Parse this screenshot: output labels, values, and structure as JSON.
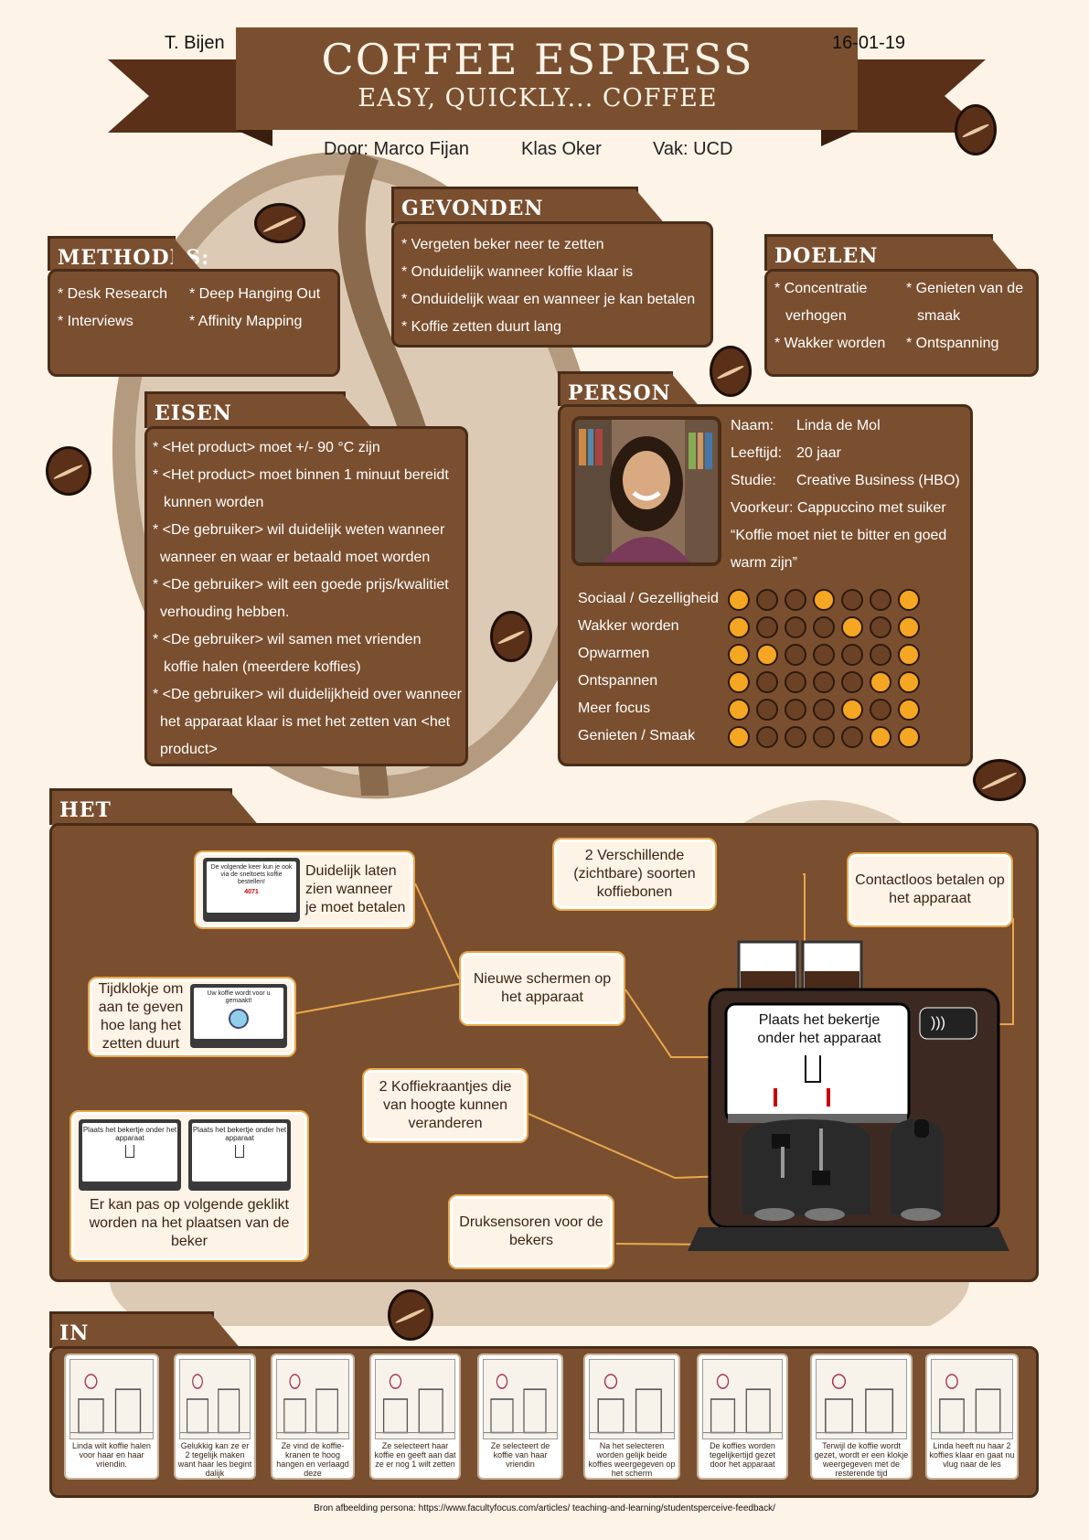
{
  "header": {
    "author": "T. Bijen",
    "date": "16-01-19",
    "title": "COFFEE ESPRESS",
    "subtitle": "EASY, QUICKLY... COFFEE",
    "by": "Door: Marco Fijan",
    "class": "Klas Oker",
    "subject": "Vak: UCD"
  },
  "methodes": {
    "title": "METHODES:",
    "col1": [
      "* Desk Research",
      "* Interviews"
    ],
    "col2": [
      "* Deep Hanging Out",
      "* Affinity Mapping"
    ]
  },
  "problemen": {
    "title": "GEVONDEN PROBLEMEN",
    "items": [
      "* Vergeten beker neer te zetten",
      "* Onduidelijk wanneer koffie klaar is",
      "* Onduidelijk waar en wanneer je kan betalen",
      "* Koffie zetten duurt lang"
    ]
  },
  "doelen": {
    "title": "DOELEN GEBRUIKER:",
    "col1": [
      "* Concentratie",
      "verhogen",
      "* Wakker worden"
    ],
    "col2": [
      "* Genieten van de",
      "smaak",
      "* Ontspanning"
    ]
  },
  "eisen": {
    "title": "EISEN GEBRUIKER",
    "lines": [
      "* <Het product> moet +/- 90 °C zijn",
      "* <Het product> moet binnen 1 minuut bereidt",
      "kunnen worden",
      "* <De gebruiker> wil duidelijk weten wanneer",
      "wanneer en waar er betaald moet worden",
      "* <De gebruiker> wilt een goede prijs/kwalitiet",
      "verhouding hebben.",
      "* <De gebruiker> wil samen met vrienden",
      "koffie halen (meerdere koffies)",
      "* <De gebruiker> wil duidelijkheid over wanneer",
      "het apparaat klaar is met het zetten van <het",
      "product>"
    ]
  },
  "persona": {
    "title": "PERSONA",
    "name_label": "Naam:",
    "name": "Linda de Mol",
    "age_label": "Leeftijd:",
    "age": "20 jaar",
    "study_label": "Studie:",
    "study": "Creative Business (HBO)",
    "pref": "Voorkeur: Cappuccino met suiker",
    "quote1": "“Koffie moet niet te bitter en goed",
    "quote2": "warm zijn”",
    "ratings": [
      {
        "label": "Sociaal / Gezelligheid",
        "level": 3
      },
      {
        "label": "Wakker worden",
        "level": 4
      },
      {
        "label": "Opwarmen",
        "level": 1
      },
      {
        "label": "Ontspannen",
        "level": 5
      },
      {
        "label": "Meer focus",
        "level": 4
      },
      {
        "label": "Genieten / Smaak",
        "level": 5
      }
    ]
  },
  "ontwerp": {
    "title": "HET ONTWERP",
    "c1": "Duidelijk laten zien wanneer je moet betalen",
    "c1_screen_text": "De volgende keer kun je ook via de sneltoets koffie bestellen!",
    "c1_screen_code": "4071",
    "c2": "Tijdklokje om aan te geven hoe lang het zetten duurt",
    "c2_screen_text": "Uw koffie wordt voor u gemaakt!",
    "c3_screen_text": "Plaats het bekertje onder het apparaat",
    "c3": "Er kan pas op volgende geklikt worden na het plaatsen van de beker",
    "c4": "2 Verschillende (zichtbare) soorten koffiebonen",
    "c5": "Contactloos betalen op het apparaat",
    "c6": "Nieuwe schermen op het apparaat",
    "c7": "2 Koffiekraantjes die van hoogte kunnen veranderen",
    "c8": "Druksensoren voor de bekers",
    "machine_screen": "Plaats het bekertje onder het apparaat"
  },
  "gebruik": {
    "title": "IN GEBRUIK",
    "steps": [
      "Linda wilt koffie halen voor haar en haar vriendin.",
      "Gelukkig kan ze er 2 tegelijk maken want haar les begint dalijk",
      "Ze vind de koffie-kranen te hoog hangen en verlaagd deze",
      "Ze selecteert haar koffie en geeft aan dat ze er nog 1 wilt zetten",
      "Ze selecteert de koffie van haar vriendin",
      "Na het selecteren worden gelijk beide koffies weergegeven op het scherm",
      "De koffies worden tegelijkertijd gezet door het apparaat",
      "Terwijl de koffie wordt gezet, wordt er een klokje weergegeven met de resterende tijd",
      "Linda heeft nu haar 2 koffies klaar en gaat nu vlug naar de les"
    ]
  },
  "source": "Bron afbeelding persona: https://www.facultyfocus.com/articles/ teaching-and-learning/studentsperceive-feedback/"
}
